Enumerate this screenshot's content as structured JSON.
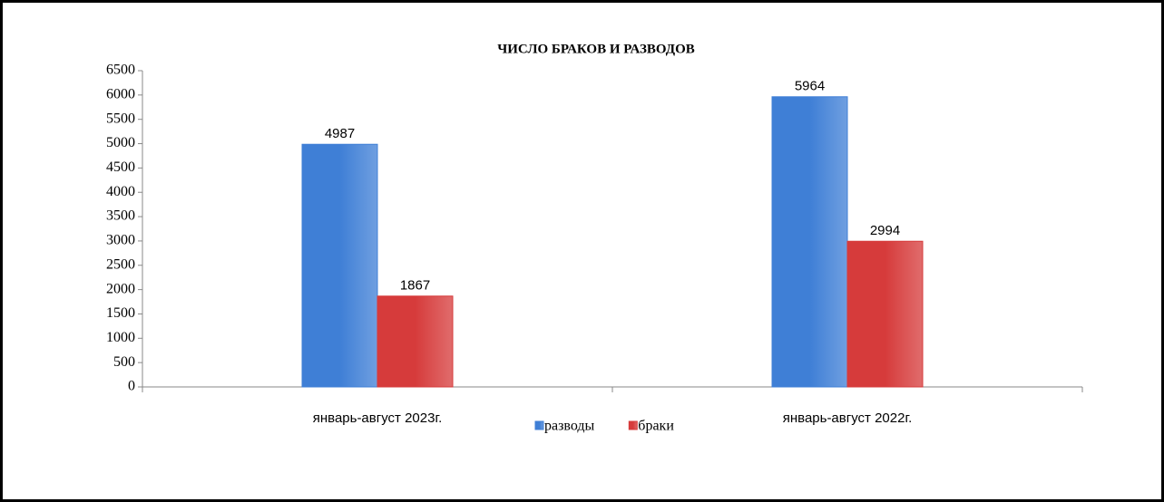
{
  "chart_data": {
    "type": "bar",
    "title": "ЧИСЛО БРАКОВ И РАЗВОДОВ",
    "categories": [
      "январь-август 2023г.",
      "январь-август 2022г."
    ],
    "series": [
      {
        "name": "разводы",
        "color": "#3f7fd6",
        "values": [
          4987,
          5964
        ]
      },
      {
        "name": "браки",
        "color": "#d63b3b",
        "values": [
          1867,
          2994
        ]
      }
    ],
    "ylim": [
      0,
      6500
    ],
    "yticks": [
      0,
      500,
      1000,
      1500,
      2000,
      2500,
      3000,
      3500,
      4000,
      4500,
      5000,
      5500,
      6000,
      6500
    ],
    "legend": "bottom"
  }
}
